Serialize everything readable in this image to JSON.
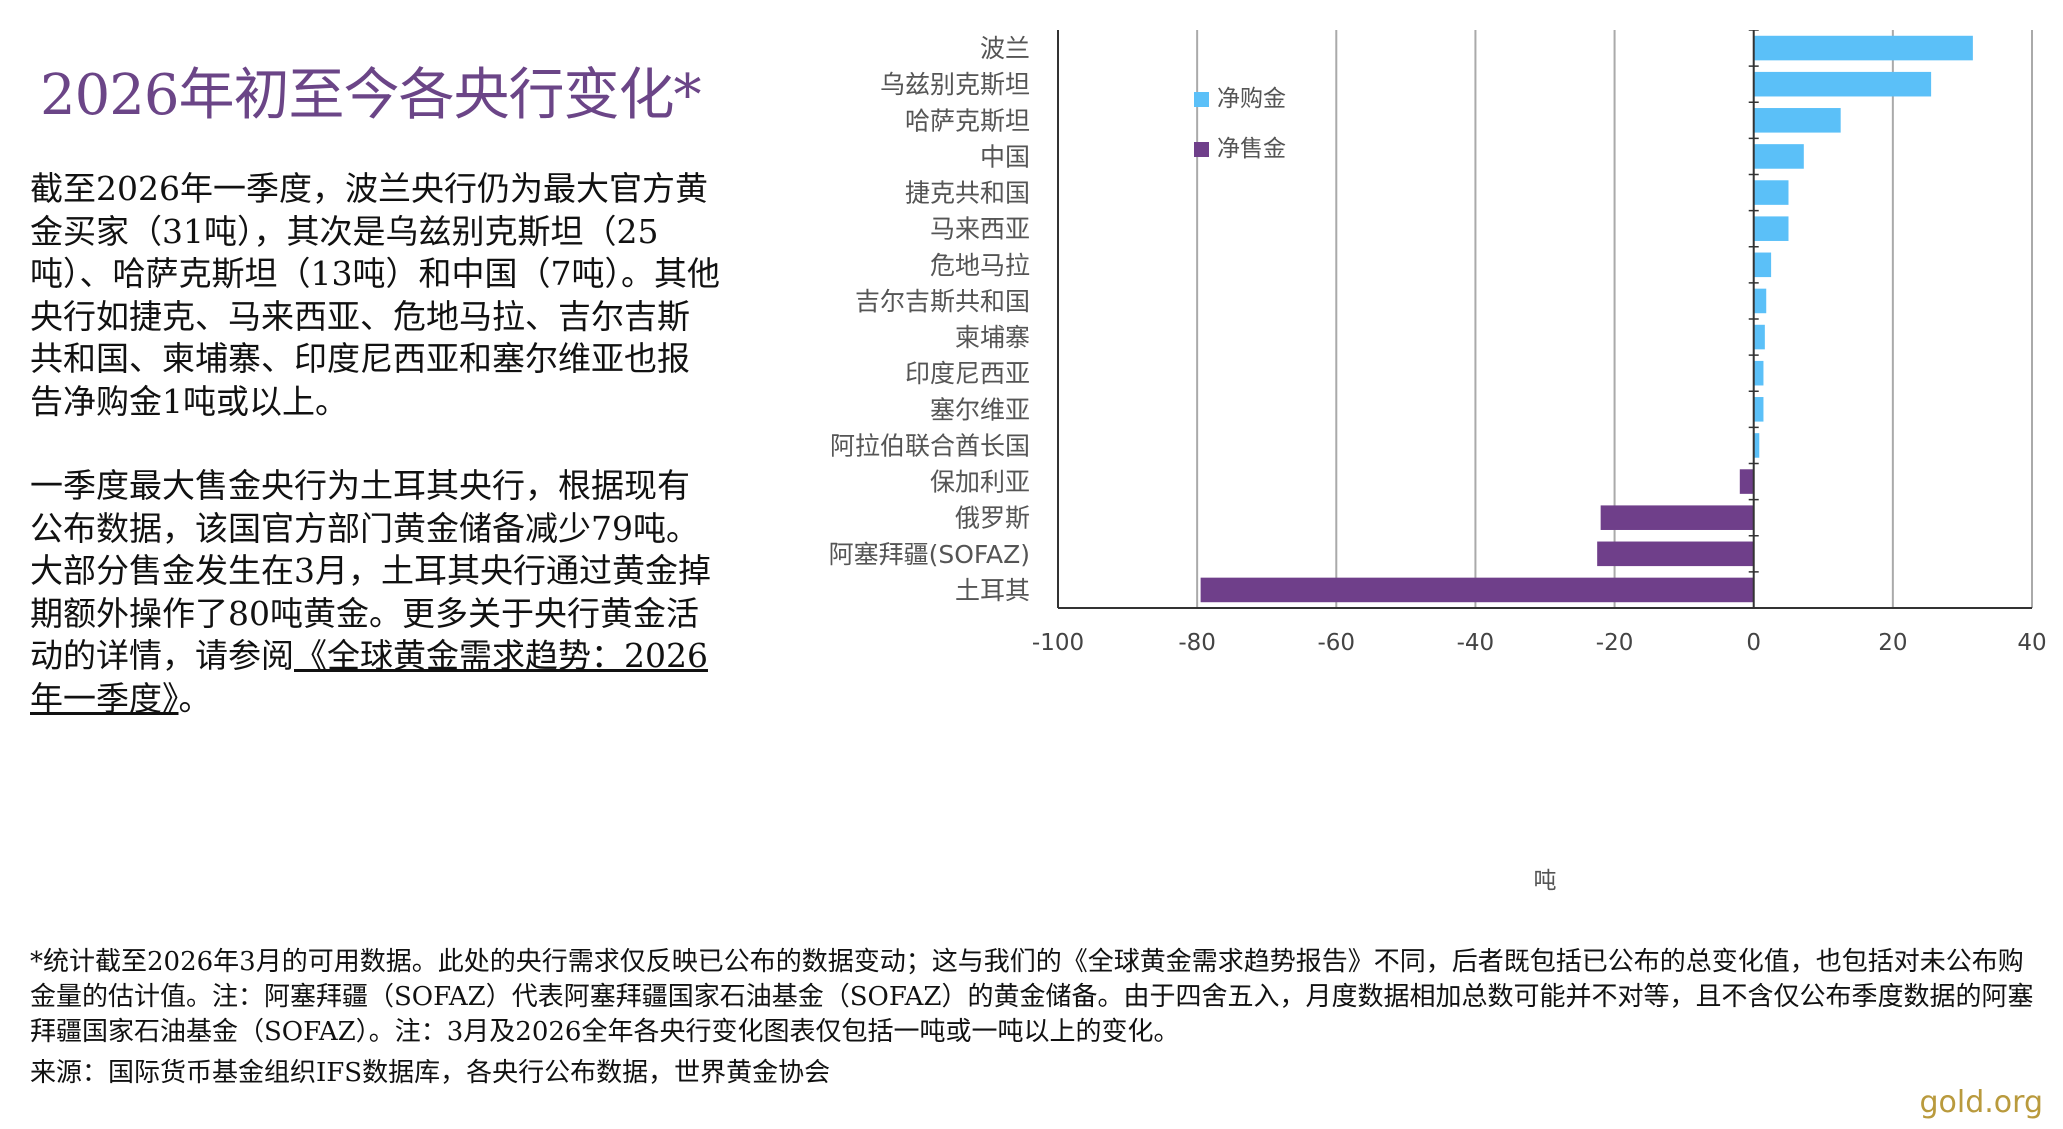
{
  "title": "2026年初至今各央行变化*",
  "body": {
    "paragraph1": "截至2026年一季度，波兰央行仍为最大官方黄金买家（31吨），其次是乌兹别克斯坦（25吨）、哈萨克斯坦（13吨）和中国（7吨）。其他央行如捷克、马来西亚、危地马拉、吉尔吉斯共和国、柬埔寨、印度尼西亚和塞尔维亚也报告净购金1吨或以上。",
    "paragraph2_text": "一季度最大售金央行为土耳其央行，根据现有公布数据，该国官方部门黄金储备减少79吨。大部分售金发生在3月，土耳其央行通过黄金掉期额外操作了80吨黄金。更多关于央行黄金活动的详情，请参阅",
    "paragraph2_link": "《全球黄金需求趋势：2026年一季度》",
    "paragraph2_end": "。"
  },
  "chart_data": {
    "type": "bar",
    "orientation": "horizontal",
    "categories": [
      "波兰",
      "乌兹别克斯坦",
      "哈萨克斯坦",
      "中国",
      "捷克共和国",
      "马来西亚",
      "危地马拉",
      "吉尔吉斯共和国",
      "柬埔寨",
      "印度尼西亚",
      "塞尔维亚",
      "阿拉伯联合酋长国",
      "保加利亚",
      "俄罗斯",
      "阿塞拜疆(SOFAZ)",
      "土耳其"
    ],
    "values": [
      31.5,
      25.5,
      12.5,
      7.2,
      5.0,
      5.0,
      2.5,
      1.8,
      1.6,
      1.4,
      1.4,
      0.8,
      -2.0,
      -22.0,
      -22.5,
      -79.5
    ],
    "series": [
      {
        "name": "净购金",
        "color": "#5bc0f8"
      },
      {
        "name": "净售金",
        "color": "#6f3f8a"
      }
    ],
    "xlabel": "吨",
    "xlim": [
      -100,
      40
    ],
    "xticks": [
      "-100",
      "-80",
      "-60",
      "-40",
      "-20",
      "0",
      "20",
      "40"
    ],
    "grid": true,
    "legend_position": "top-left"
  },
  "footnote": "*统计截至2026年3月的可用数据。此处的央行需求仅反映已公布的数据变动；这与我们的《全球黄金需求趋势报告》不同，后者既包括已公布的总变化值，也包括对未公布购金量的估计值。注：阿塞拜疆（SOFAZ）代表阿塞拜疆国家石油基金（SOFAZ）的黄金储备。由于四舍五入，月度数据相加总数可能并不对等，且不含仅公布季度数据的阿塞拜疆国家石油基金（SOFAZ）。注：3月及2026全年各央行变化图表仅包括一吨或一吨以上的变化。",
  "source": "来源：国际货币基金组织IFS数据库，各央行公布数据，世界黄金协会",
  "brand": "gold.org"
}
